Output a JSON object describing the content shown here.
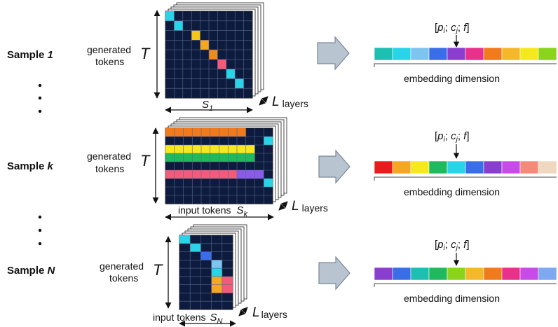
{
  "colors": {
    "cell_bg": "#0d1b3e",
    "grid_line": "#5a6a8a",
    "arrow_fill": "#b8c4d0",
    "arrow_stroke": "#7a8898",
    "text": "#111111"
  },
  "labels": {
    "generated": "generated",
    "tokens": "tokens",
    "T": "T",
    "L": "L",
    "layers": "layers",
    "input_tokens": "input tokens",
    "S": "S",
    "embedding_dimension": "embedding dimension",
    "formula_open": "[",
    "p": "p",
    "i": "i",
    "sep1": "; ",
    "c": "c",
    "j": "j",
    "sep2": "; ",
    "f": "f",
    "formula_close": "]",
    "ellipsis_dot": "•"
  },
  "samples": [
    {
      "id": "sample-1",
      "label_prefix": "Sample ",
      "label_var": "1",
      "S_sub": "1",
      "has_input_tokens_label": false,
      "grid": {
        "cols": 10,
        "rows": 9,
        "filled": [
          {
            "r": 0,
            "c": 0,
            "color": "#29d4e8"
          },
          {
            "r": 1,
            "c": 1,
            "color": "#29d4e8"
          },
          {
            "r": 2,
            "c": 3,
            "color": "#f5c518"
          },
          {
            "r": 3,
            "c": 4,
            "color": "#f5a623"
          },
          {
            "r": 4,
            "c": 5,
            "color": "#f08a1c"
          },
          {
            "r": 5,
            "c": 6,
            "color": "#f25c7a"
          },
          {
            "r": 6,
            "c": 7,
            "color": "#29d4e8"
          },
          {
            "r": 7,
            "c": 8,
            "color": "#29d4e8"
          }
        ]
      },
      "embedding": [
        "#1cbfb0",
        "#29d4e8",
        "#7ec4f0",
        "#3a6ee8",
        "#8a3ed0",
        "#e8318a",
        "#f07a1c",
        "#f5b82a",
        "#f5e81c",
        "#8ad41c"
      ]
    },
    {
      "id": "sample-k",
      "label_prefix": "Sample ",
      "label_var": "k",
      "S_sub": "k",
      "has_input_tokens_label": true,
      "grid": {
        "cols": 12,
        "rows": 9,
        "filled": [
          {
            "r": 0,
            "c": 0,
            "w": 9,
            "color": "#f07a1c"
          },
          {
            "r": 1,
            "c": 11,
            "w": 1,
            "color": "#29d4e8"
          },
          {
            "r": 2,
            "c": 0,
            "w": 10,
            "color": "#f5e81c"
          },
          {
            "r": 3,
            "c": 0,
            "w": 10,
            "color": "#1fba5e"
          },
          {
            "r": 5,
            "c": 0,
            "w": 8,
            "color": "#f25c7a"
          },
          {
            "r": 5,
            "c": 8,
            "w": 3,
            "color": "#8a5ae8"
          },
          {
            "r": 6,
            "c": 11,
            "w": 1,
            "color": "#29d4e8"
          }
        ]
      },
      "embedding": [
        "#e81c1c",
        "#f5a623",
        "#f5e81c",
        "#1fba5e",
        "#29d4e8",
        "#3a6ee8",
        "#8a3ed0",
        "#c84ae8",
        "#f58a7a",
        "#f0d8c0"
      ]
    },
    {
      "id": "sample-n",
      "label_prefix": "Sample ",
      "label_var": "N",
      "S_sub": "N",
      "has_input_tokens_label": true,
      "grid": {
        "cols": 5,
        "rows": 9,
        "filled": [
          {
            "r": 0,
            "c": 0,
            "w": 1,
            "color": "#29d4e8"
          },
          {
            "r": 1,
            "c": 1,
            "w": 1,
            "color": "#29d4e8"
          },
          {
            "r": 2,
            "c": 2,
            "w": 1,
            "color": "#3a6ee8"
          },
          {
            "r": 3,
            "c": 3,
            "w": 1,
            "color": "#7ec4f0"
          },
          {
            "r": 4,
            "c": 3,
            "w": 1,
            "color": "#29d4e8"
          },
          {
            "r": 5,
            "c": 3,
            "w": 1,
            "color": "#f5a623"
          },
          {
            "r": 5,
            "c": 4,
            "w": 1,
            "color": "#f25c7a"
          },
          {
            "r": 6,
            "c": 3,
            "w": 1,
            "color": "#f5a623"
          },
          {
            "r": 6,
            "c": 4,
            "w": 1,
            "color": "#f25c7a"
          }
        ]
      },
      "embedding": [
        "#8a3ed0",
        "#3a6ee8",
        "#1cbfb0",
        "#1fba5e",
        "#8ad41c",
        "#f5b82a",
        "#f07a1c",
        "#e8318a",
        "#c84ae8",
        "#7ea8f0"
      ]
    }
  ]
}
